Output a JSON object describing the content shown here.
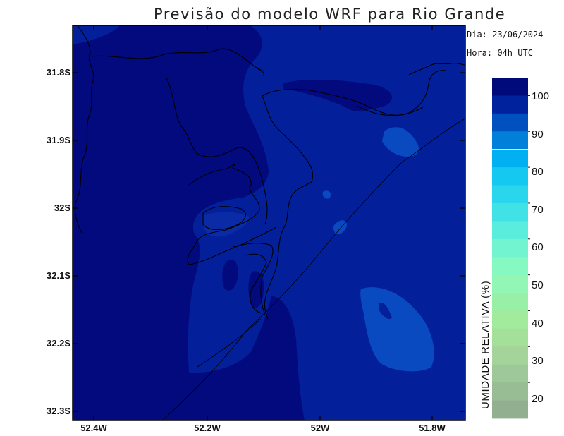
{
  "title": "Previsão do modelo WRF para Rio Grande",
  "date_label": "Dia: 23/06/2024",
  "time_label": "Hora: 04h UTC",
  "latitude_ticks": [
    "31.8S",
    "31.9S",
    "32S",
    "32.1S",
    "32.2S",
    "32.3S"
  ],
  "longitude_ticks": [
    "52.4W",
    "52.2W",
    "52W",
    "51.8W"
  ],
  "colorbar": {
    "title": "UMIDADE RELATIVA (%)",
    "labels": [
      "100",
      "90",
      "80",
      "70",
      "60",
      "50",
      "40",
      "30",
      "20"
    ],
    "colors_top_to_bottom": [
      "#000a7a",
      "#00239d",
      "#0050c0",
      "#0080d8",
      "#00b0f0",
      "#15c8f0",
      "#2ad6ec",
      "#40e2e6",
      "#5aecdc",
      "#72f4d0",
      "#86f8c2",
      "#92f7b4",
      "#98f0a6",
      "#a2ea9c",
      "#a4e09a",
      "#a4d49a",
      "#9ec898",
      "#98bc94",
      "#92b090"
    ]
  },
  "colors": {
    "deep_humidity": "#020a7e",
    "mid_humidity": "#03209a",
    "lower_humidity": "#0a4ac0",
    "outline": "#000000"
  }
}
